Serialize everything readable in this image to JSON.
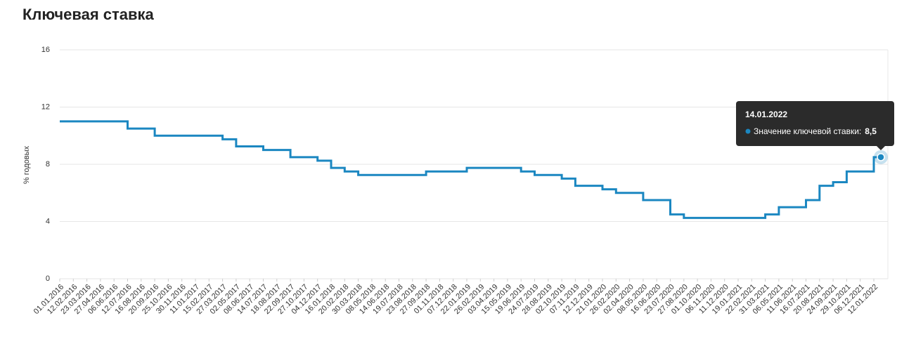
{
  "chart_data": {
    "type": "step-line",
    "title": "Ключевая ставка",
    "y_label": "% годовых",
    "categories": [
      "01.01.2016",
      "12.02.2016",
      "23.03.2016",
      "27.04.2016",
      "06.06.2016",
      "12.07.2016",
      "16.08.2016",
      "20.09.2016",
      "25.10.2016",
      "30.11.2016",
      "11.01.2017",
      "15.02.2017",
      "27.03.2017",
      "02.05.2017",
      "08.06.2017",
      "14.07.2017",
      "18.08.2017",
      "22.09.2017",
      "27.10.2017",
      "04.12.2017",
      "16.01.2018",
      "20.02.2018",
      "30.03.2018",
      "08.05.2018",
      "14.06.2018",
      "19.07.2018",
      "23.08.2018",
      "27.09.2018",
      "01.11.2018",
      "07.12.2018",
      "22.01.2019",
      "26.02.2019",
      "03.04.2019",
      "15.05.2019",
      "19.06.2019",
      "24.07.2019",
      "28.08.2019",
      "02.10.2019",
      "07.11.2019",
      "12.12.2019",
      "21.01.2020",
      "26.02.2020",
      "02.04.2020",
      "08.05.2020",
      "16.06.2020",
      "23.07.2020",
      "27.08.2020",
      "01.10.2020",
      "06.11.2020",
      "11.12.2020",
      "19.01.2021",
      "22.02.2021",
      "31.03.2021",
      "06.05.2021",
      "11.06.2021",
      "16.07.2021",
      "20.08.2021",
      "24.09.2021",
      "29.10.2021",
      "06.12.2021",
      "12.01.2022"
    ],
    "series": [
      {
        "name": "Значение ключевой ставки",
        "color": "#1b87c1",
        "values": [
          11,
          11,
          11,
          11,
          11,
          10.5,
          10.5,
          10,
          10,
          10,
          10,
          10,
          9.75,
          9.25,
          9.25,
          9,
          9,
          8.5,
          8.5,
          8.25,
          7.75,
          7.5,
          7.25,
          7.25,
          7.25,
          7.25,
          7.25,
          7.5,
          7.5,
          7.5,
          7.75,
          7.75,
          7.75,
          7.75,
          7.5,
          7.25,
          7.25,
          7,
          6.5,
          6.5,
          6.25,
          6,
          6,
          5.5,
          5.5,
          4.5,
          4.25,
          4.25,
          4.25,
          4.25,
          4.25,
          4.25,
          4.5,
          5,
          5,
          5.5,
          6.5,
          6.75,
          7.5,
          7.5,
          8.5
        ]
      }
    ],
    "ylim": [
      0,
      16
    ],
    "yticks": [
      0,
      4,
      8,
      12,
      16
    ],
    "grid": true,
    "tooltip": {
      "date": "14.01.2022",
      "label": "Значение ключевой ставки:",
      "value": 8.5,
      "value_label": "8,5"
    }
  }
}
